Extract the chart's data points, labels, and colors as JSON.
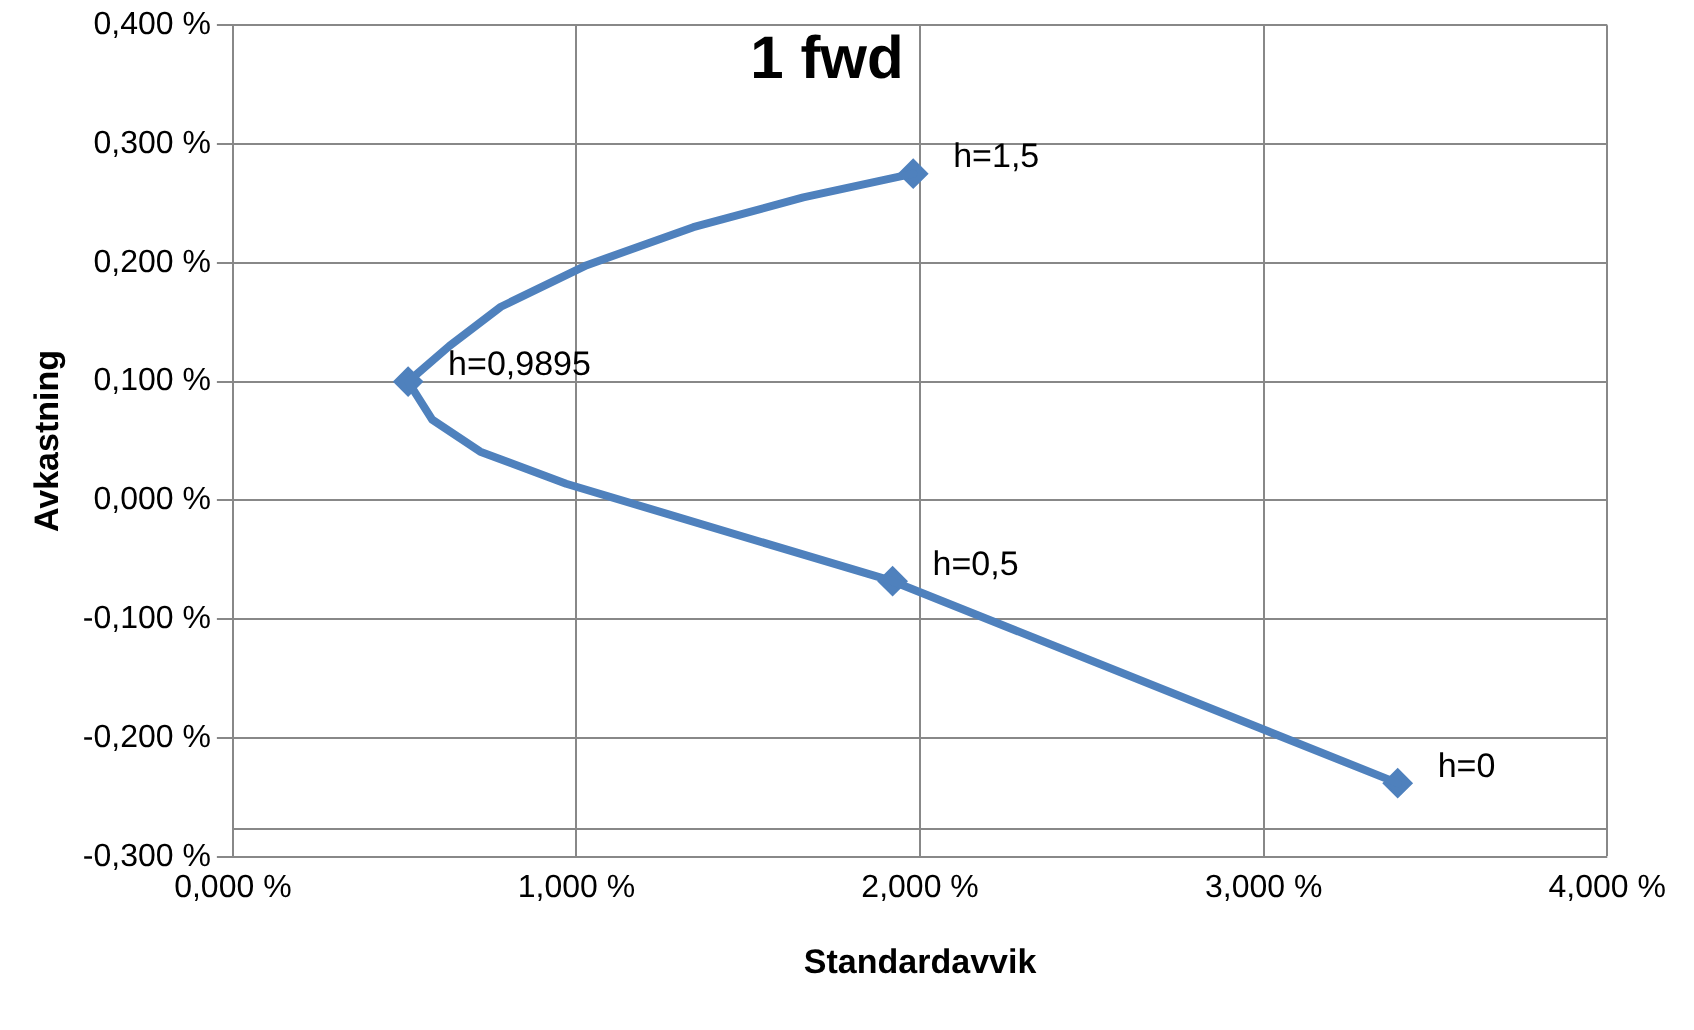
{
  "chart_data": {
    "type": "line",
    "title": "1 fwd",
    "xlabel": "Standardavvik",
    "ylabel": "Avkastning",
    "xlim": [
      0,
      4
    ],
    "xticks": [
      {
        "value": 0,
        "label": "0,000 %"
      },
      {
        "value": 1,
        "label": "1,000 %"
      },
      {
        "value": 2,
        "label": "2,000 %"
      },
      {
        "value": 3,
        "label": "3,000 %"
      },
      {
        "value": 4,
        "label": "4,000 %"
      }
    ],
    "ylim": [
      -0.3,
      0.4
    ],
    "yticks": [
      {
        "value": -0.3,
        "label": "-0,300 %"
      },
      {
        "value": -0.2,
        "label": "-0,200 %"
      },
      {
        "value": -0.1,
        "label": "-0,100 %"
      },
      {
        "value": 0,
        "label": "0,000 %"
      },
      {
        "value": 0.1,
        "label": "0,100 %"
      },
      {
        "value": 0.2,
        "label": "0,200 %"
      },
      {
        "value": 0.3,
        "label": "0,300 %"
      },
      {
        "value": 0.4,
        "label": "0,400 %"
      }
    ],
    "grid": true,
    "legend": false,
    "series": [
      {
        "color": "#4f81bd",
        "marker": "none",
        "x": [
          1.98,
          1.66,
          1.34,
          1.03,
          0.78,
          0.63,
          0.51,
          0.58,
          0.72,
          0.97,
          1.92,
          3.39
        ],
        "values": [
          0.275,
          0.255,
          0.23,
          0.198,
          0.163,
          0.13,
          0.1,
          0.068,
          0.041,
          0.014,
          -0.068,
          -0.238
        ]
      },
      {
        "type": "scatter",
        "color": "#4f81bd",
        "marker": "diamond",
        "x": [
          1.98,
          0.51,
          1.92,
          3.39
        ],
        "values": [
          0.275,
          0.1,
          -0.068,
          -0.238
        ]
      }
    ],
    "annotations": [
      {
        "text": "h=1,5",
        "x": 1.98,
        "y": 0.275
      },
      {
        "text": "h=0,9895",
        "x": 0.51,
        "y": 0.1
      },
      {
        "text": "h=0,5",
        "x": 1.92,
        "y": -0.068
      },
      {
        "text": "h=0",
        "x": 3.39,
        "y": -0.238
      }
    ]
  }
}
